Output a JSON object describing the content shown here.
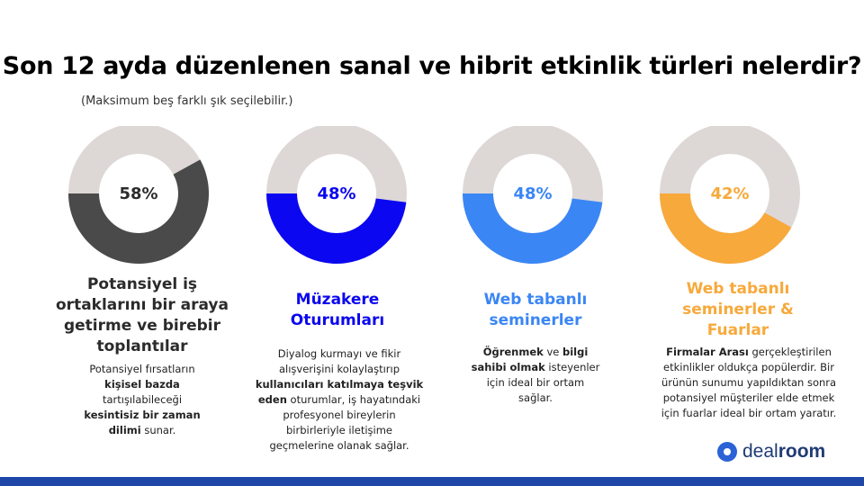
{
  "title": "Son 12 ayda düzenlenen sanal ve hibrit etkinlik türleri nelerdir?",
  "subtitle": "(Maksimum beş farklı şık seçilebilir.)",
  "colors": {
    "track": "#ddd8d6",
    "series": [
      "#4a4a4a",
      "#0b07f0",
      "#3b86f5",
      "#f7a93b"
    ],
    "label": [
      "#2b2b2b",
      "#0b07f0",
      "#3b86f5",
      "#f7a93b"
    ]
  },
  "chart_data": {
    "type": "pie",
    "values": [
      58,
      48,
      48,
      42
    ],
    "value_labels": [
      "58%",
      "48%",
      "48%",
      "42%"
    ],
    "categories": [
      "Potansiyel iş ortaklarını bir araya getirme ve birebir toplantılar",
      "Müzakere Oturumları",
      "Web tabanlı seminerler",
      "Web tabanlı seminerler & Fuarlar"
    ],
    "unit": "%"
  },
  "cards": [
    {
      "heading_lines": [
        "Potansiyel iş",
        "ortaklarını bir araya",
        "getirme ve birebir",
        "toplantılar"
      ],
      "desc_lines": [
        [
          {
            "t": "Potansiyel fırsatların",
            "b": false
          }
        ],
        [
          {
            "t": "kişisel bazda",
            "b": true
          }
        ],
        [
          {
            "t": "tartışılabileceği",
            "b": false
          }
        ],
        [
          {
            "t": "kesintisiz bir zaman",
            "b": true
          }
        ],
        [
          {
            "t": "dilimi",
            "b": true
          },
          {
            "t": " sunar.",
            "b": false
          }
        ]
      ]
    },
    {
      "heading_lines": [
        "Müzakere",
        "Oturumları"
      ],
      "desc_lines": [
        [
          {
            "t": "Diyalog kurmayı ve fikir",
            "b": false
          }
        ],
        [
          {
            "t": "alışverişini kolaylaştırıp",
            "b": false
          }
        ],
        [
          {
            "t": "kullanıcıları katılmaya teşvik",
            "b": true
          }
        ],
        [
          {
            "t": "eden",
            "b": true
          },
          {
            "t": " oturumlar, iş hayatındaki",
            "b": false
          }
        ],
        [
          {
            "t": "profesyonel bireylerin",
            "b": false
          }
        ],
        [
          {
            "t": "birbirleriyle iletişime",
            "b": false
          }
        ],
        [
          {
            "t": "geçmelerine olanak sağlar.",
            "b": false
          }
        ]
      ]
    },
    {
      "heading_lines": [
        "Web tabanlı",
        "seminerler"
      ],
      "desc_lines": [
        [
          {
            "t": "Öğrenmek",
            "b": true
          },
          {
            "t": " ve ",
            "b": false
          },
          {
            "t": "bilgi",
            "b": true
          }
        ],
        [
          {
            "t": "sahibi olmak",
            "b": true
          },
          {
            "t": " isteyenler",
            "b": false
          }
        ],
        [
          {
            "t": "için ideal bir ortam",
            "b": false
          }
        ],
        [
          {
            "t": "sağlar.",
            "b": false
          }
        ]
      ]
    },
    {
      "heading_lines": [
        "Web tabanlı",
        "seminerler &",
        "Fuarlar"
      ],
      "desc_lines": [
        [
          {
            "t": "Firmalar Arası",
            "b": true
          },
          {
            "t": " gerçekleştirilen",
            "b": false
          }
        ],
        [
          {
            "t": "etkinlikler oldukça popülerdir. Bir",
            "b": false
          }
        ],
        [
          {
            "t": "ürünün sunumu yapıldıktan sonra",
            "b": false
          }
        ],
        [
          {
            "t": "potansiyel müşteriler elde etmek",
            "b": false
          }
        ],
        [
          {
            "t": "için fuarlar ideal bir ortam yaratır.",
            "b": false
          }
        ]
      ]
    }
  ],
  "logo": {
    "part1": "deal",
    "part2": "room"
  }
}
